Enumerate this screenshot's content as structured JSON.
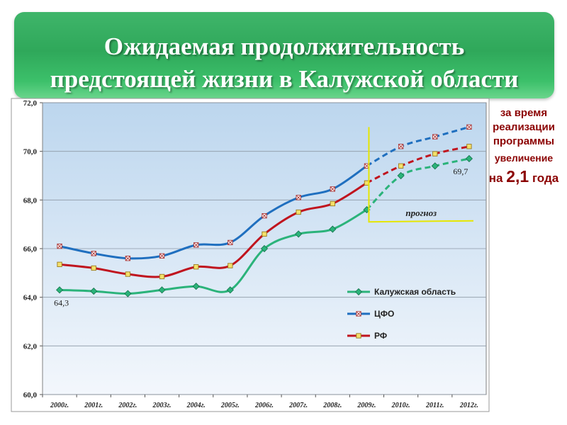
{
  "banner": {
    "title_line1": "Ожидаемая продолжительность",
    "title_line2": "предстоящей жизни в Калужской области"
  },
  "side_note": {
    "line1": "за время",
    "line2": "реализации",
    "line3": "программы",
    "line4": "увеличение",
    "line5_prefix": "на ",
    "line5_value": "2,1",
    "line5_suffix": " года"
  },
  "chart_data": {
    "type": "line",
    "categories": [
      "2000г.",
      "2001г.",
      "2002г.",
      "2003г.",
      "2004г.",
      "2005г.",
      "2006г.",
      "2007г.",
      "2008г.",
      "2009г.",
      "2010г.",
      "2011г.",
      "2012г."
    ],
    "ylim": [
      60.0,
      72.0
    ],
    "yticks": [
      "60,0",
      "62,0",
      "64,0",
      "66,0",
      "68,0",
      "70,0",
      "72,0"
    ],
    "grid": true,
    "legend_position": "lower-right",
    "forecast_from_index": 9,
    "forecast_label": "прогноз",
    "annotations": [
      "64,3",
      "69,7"
    ],
    "series": [
      {
        "name": "Калужская область",
        "color": "#2bb37a",
        "marker": "diamond",
        "values": [
          64.3,
          64.25,
          64.15,
          64.3,
          64.45,
          64.3,
          66.0,
          66.6,
          66.8,
          67.6,
          69.0,
          69.4,
          69.7
        ]
      },
      {
        "name": "ЦФО",
        "color": "#1f6fbf",
        "marker": "square-x",
        "values": [
          66.1,
          65.8,
          65.6,
          65.7,
          66.15,
          66.25,
          67.35,
          68.1,
          68.45,
          69.4,
          70.2,
          70.6,
          71.0
        ]
      },
      {
        "name": "РФ",
        "color": "#c0141e",
        "marker": "square-yellow",
        "values": [
          65.35,
          65.2,
          64.95,
          64.85,
          65.25,
          65.3,
          66.6,
          67.5,
          67.85,
          68.7,
          69.4,
          69.9,
          70.2
        ]
      }
    ]
  }
}
